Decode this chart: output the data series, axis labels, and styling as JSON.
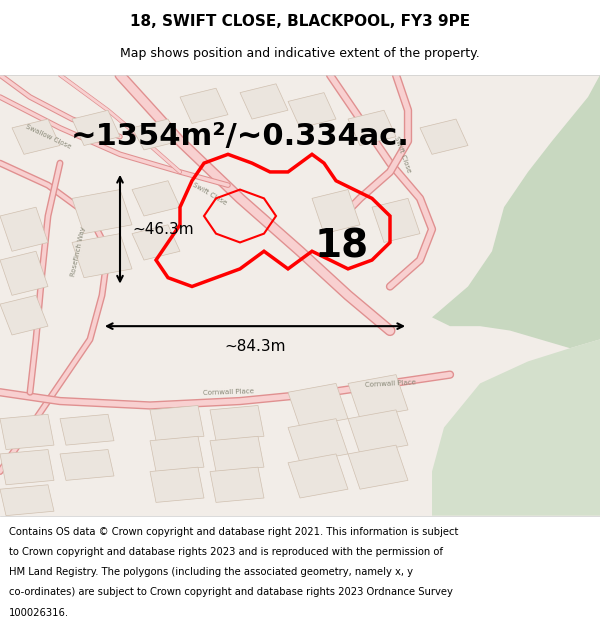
{
  "title_line1": "18, SWIFT CLOSE, BLACKPOOL, FY3 9PE",
  "title_line2": "Map shows position and indicative extent of the property.",
  "footer_lines": [
    "Contains OS data © Crown copyright and database right 2021. This information is subject",
    "to Crown copyright and database rights 2023 and is reproduced with the permission of",
    "HM Land Registry. The polygons (including the associated geometry, namely x, y",
    "co-ordinates) are subject to Crown copyright and database rights 2023 Ordnance Survey",
    "100026316."
  ],
  "area_text": "~1354m²/~0.334ac.",
  "label_number": "18",
  "dim_horizontal": "~84.3m",
  "dim_vertical": "~46.3m",
  "map_bg": "#f2ede8",
  "green_area_color": "#c8d8c0",
  "green_area2_color": "#d4e0cc",
  "road_outer_color": "#e09090",
  "road_inner_color": "#f8d0d0",
  "building_color": "#ebe5de",
  "building_ec": "#d0c0b0",
  "highlight_color": "#ff0000",
  "dim_line_color": "#000000",
  "road_label_color": "#888877",
  "title_fontsize": 11,
  "subtitle_fontsize": 9,
  "footer_fontsize": 7.2,
  "area_text_fontsize": 22,
  "label_number_fontsize": 28,
  "dim_fontsize": 11
}
